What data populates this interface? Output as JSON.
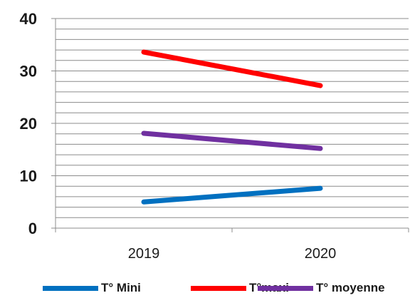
{
  "chart_data": {
    "type": "line",
    "categories": [
      "2019",
      "2020"
    ],
    "ylim": [
      0,
      40
    ],
    "yticks": [
      0,
      10,
      20,
      30,
      40
    ],
    "minor_grid_step": 2,
    "grid": true,
    "legend_position": "bottom",
    "series": [
      {
        "name": "T° Mini",
        "values": [
          5,
          7.6
        ],
        "color": "#0070c0"
      },
      {
        "name": "T°maxi",
        "values": [
          33.6,
          27.2
        ],
        "color": "#ff0000"
      },
      {
        "name": "T° moyenne",
        "values": [
          18.1,
          15.2
        ],
        "color": "#7030a0"
      }
    ]
  }
}
